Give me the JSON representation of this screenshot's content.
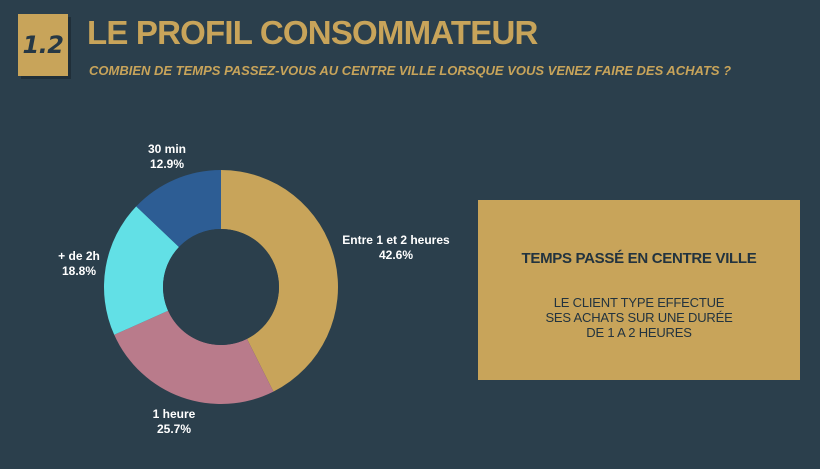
{
  "header": {
    "badge": "1.2",
    "title": "LE PROFIL CONSOMMATEUR",
    "subtitle": "COMBIEN DE TEMPS PASSEZ-VOUS AU CENTRE VILLE LORSQUE VOUS VENEZ FAIRE DES ACHATS ?"
  },
  "chart_data": {
    "type": "pie",
    "donut": true,
    "title": "",
    "slices": [
      {
        "label": "Entre 1 et 2 heures",
        "value": 42.6,
        "display": "42.6%",
        "color": "#c8a45a"
      },
      {
        "label": "1 heure",
        "value": 25.7,
        "display": "25.7%",
        "color": "#b97b8b"
      },
      {
        "label": "+ de 2h",
        "value": 18.8,
        "display": "18.8%",
        "color": "#62e0e6"
      },
      {
        "label": "30 min",
        "value": 12.9,
        "display": "12.9%",
        "color": "#2d5d94"
      }
    ]
  },
  "callout": {
    "title": "TEMPS PASSÉ EN CENTRE VILLE",
    "lines": [
      "LE CLIENT TYPE EFFECTUE",
      "SES ACHATS SUR UNE DURÉE",
      "DE 1 A 2 HEURES"
    ]
  },
  "colors": {
    "background": "#2b3f4c",
    "accent": "#c8a45a",
    "label_text": "#ffffff"
  }
}
